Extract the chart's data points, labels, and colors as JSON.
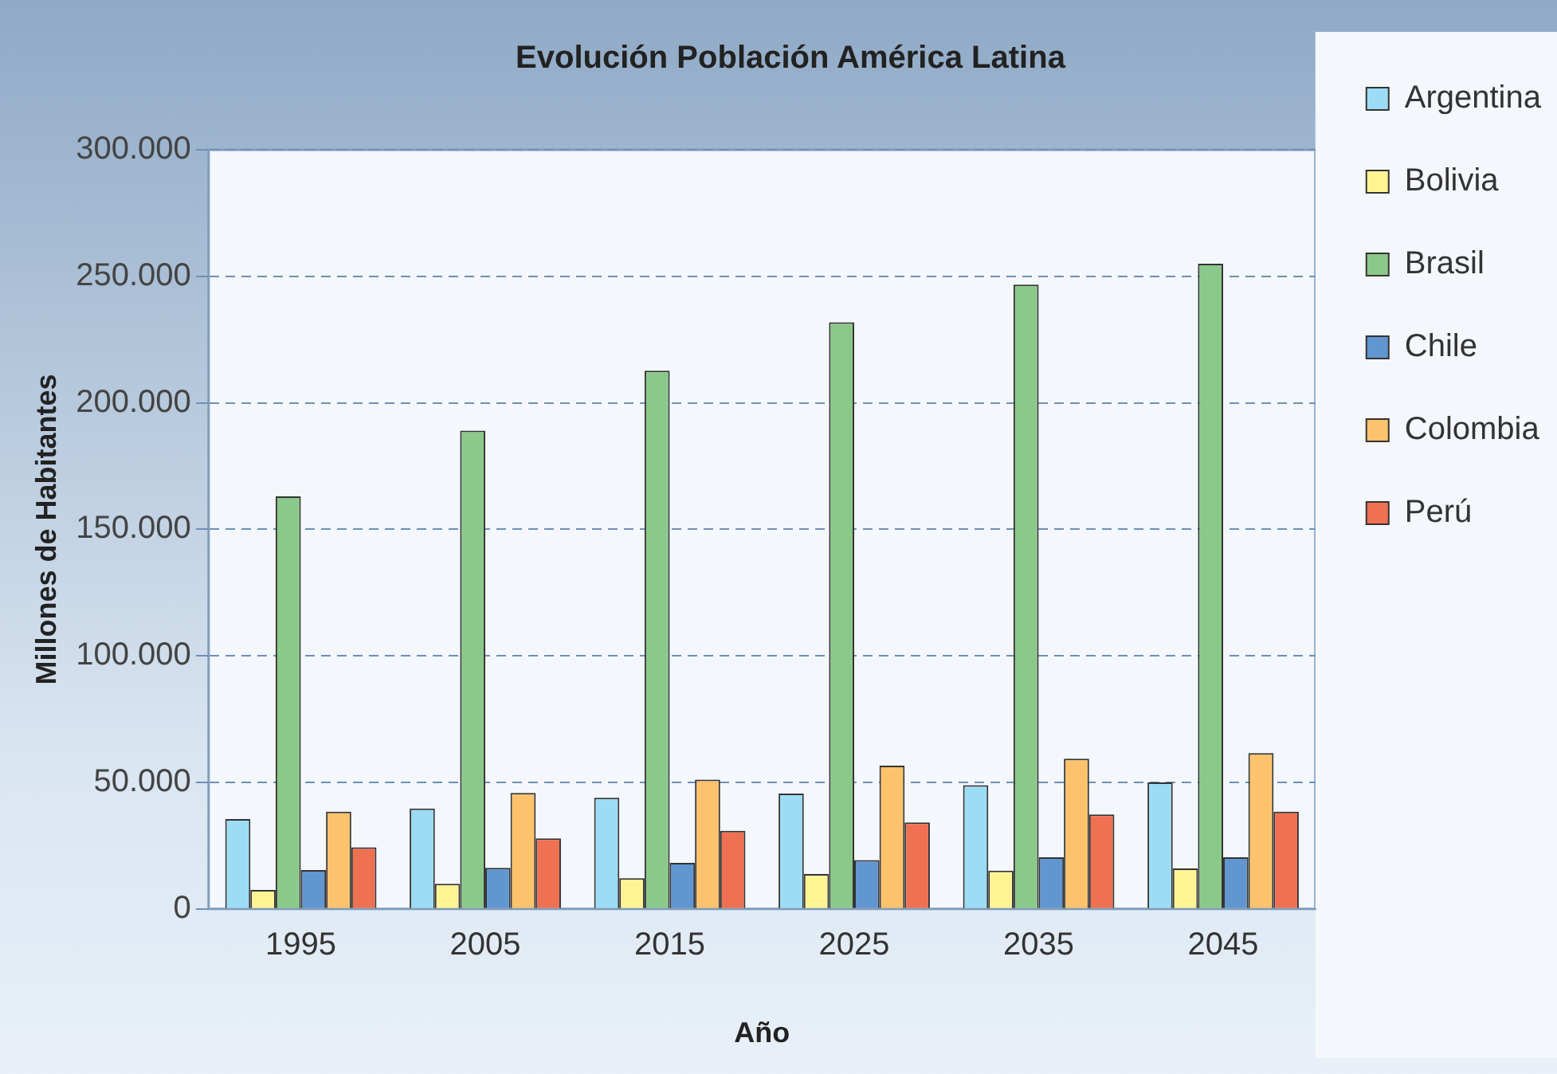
{
  "chart_data": {
    "type": "bar",
    "title": "Evolución Población América Latina",
    "xlabel": "Año",
    "ylabel": "Millones de Habitantes",
    "categories": [
      "1995",
      "2005",
      "2015",
      "2025",
      "2035",
      "2045"
    ],
    "series": [
      {
        "name": "Argentina",
        "color": "#9ddcf5",
        "values": [
          35500,
          39700,
          43900,
          45600,
          48900,
          50000
        ]
      },
      {
        "name": "Bolivia",
        "color": "#fff494",
        "values": [
          7500,
          9900,
          12100,
          13800,
          15100,
          16000
        ]
      },
      {
        "name": "Brasil",
        "color": "#8bc98a",
        "values": [
          163000,
          189000,
          212700,
          231800,
          246700,
          255000
        ]
      },
      {
        "name": "Chile",
        "color": "#6196d0",
        "values": [
          15400,
          16200,
          18200,
          19300,
          20400,
          20400
        ]
      },
      {
        "name": "Colombia",
        "color": "#fcc36c",
        "values": [
          38400,
          45800,
          51100,
          56600,
          59400,
          61600
        ]
      },
      {
        "name": "Perú",
        "color": "#f07052",
        "values": [
          24300,
          27900,
          30900,
          34200,
          37300,
          38400
        ]
      }
    ],
    "ylim": [
      0,
      300000
    ],
    "yticks": [
      {
        "value": 0,
        "label": "0"
      },
      {
        "value": 50000,
        "label": "50.000"
      },
      {
        "value": 100000,
        "label": "100.000"
      },
      {
        "value": 150000,
        "label": "150.000"
      },
      {
        "value": 200000,
        "label": "200.000"
      },
      {
        "value": 250000,
        "label": "250.000"
      },
      {
        "value": 300000,
        "label": "300.000"
      }
    ],
    "grid": "y",
    "legend": "right"
  }
}
